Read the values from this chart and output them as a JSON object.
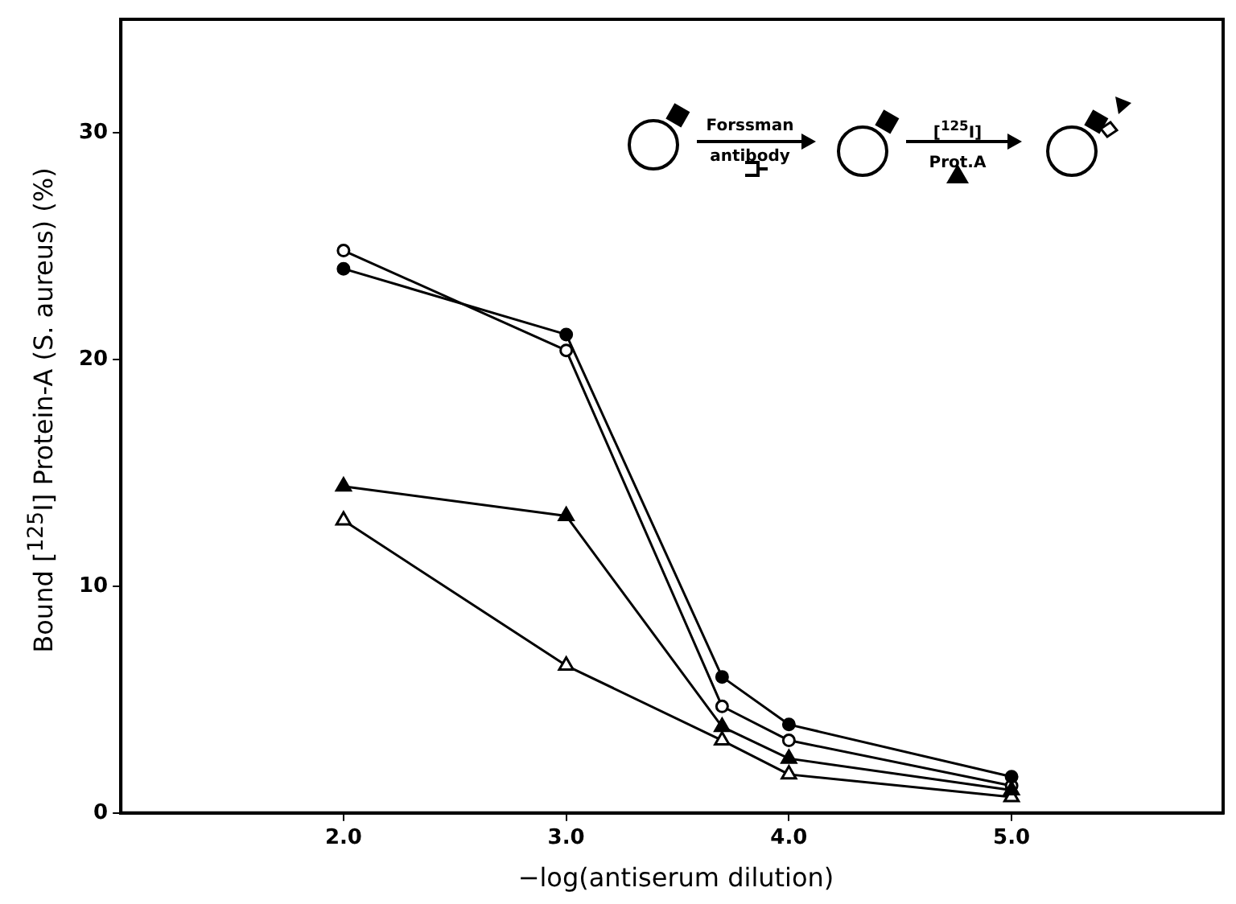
{
  "chart_data": {
    "type": "line",
    "xlabel": "−log(antiserum dilution)",
    "ylabel": "Bound [$^{125}$I] Protein-A (S. aureus) (%)",
    "annotations": [
      "Forssman antibody",
      "[$^{125}$I] Prot.A"
    ],
    "xlim": [
      1.0,
      5.95
    ],
    "xticks": [
      {
        "value": 2,
        "label": "2.0"
      },
      {
        "value": 3,
        "label": "3.0"
      },
      {
        "value": 4,
        "label": "4.0"
      },
      {
        "value": 5,
        "label": "5.0"
      }
    ],
    "ylim": [
      0,
      35
    ],
    "yticks": [
      0,
      10,
      20,
      30
    ],
    "grid": false,
    "legend": false,
    "x": [
      2.0,
      3.0,
      3.7,
      4.0,
      5.0
    ],
    "series": [
      {
        "color": "#000000",
        "marker": "circle",
        "values": [
          24.0,
          21.1,
          6.0,
          3.9,
          1.6
        ]
      },
      {
        "color": "#000000",
        "marker": "circle",
        "values": [
          24.8,
          20.4,
          4.7,
          3.2,
          1.2
        ]
      },
      {
        "color": "#000000",
        "marker": "triangle",
        "values": [
          14.4,
          13.1,
          3.8,
          2.4,
          1.0
        ]
      },
      {
        "color": "#000000",
        "marker": "triangle",
        "values": [
          12.9,
          6.5,
          3.2,
          1.7,
          0.7
        ]
      }
    ]
  }
}
